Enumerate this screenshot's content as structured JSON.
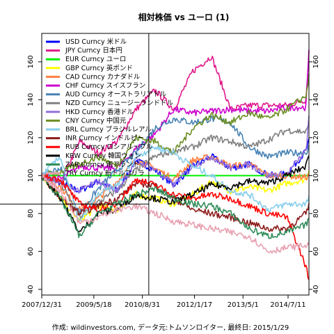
{
  "chart_data": {
    "type": "line",
    "title": "相対株価 vs ユーロ (1)",
    "footer": "作成: wildinvestors.com, データ元:トムソンロイター, 最終日: 2015/1/29",
    "xlabel": "",
    "ylabel": "",
    "x_tick_labels": [
      "2007/12/31",
      "2009/5/18",
      "2010/8/31",
      "2012/1/17",
      "2013/5/1",
      "2014/7/11"
    ],
    "x_tick_dates": [
      "2007-12-31",
      "2009-05-18",
      "2010-08-31",
      "2012-01-17",
      "2013-05-01",
      "2014-07-11"
    ],
    "x_range": [
      "2007-12-31",
      "2015-01-29"
    ],
    "y_ticks": [
      40,
      60,
      80,
      100,
      120,
      140,
      160
    ],
    "ylim": [
      37,
      175
    ],
    "reference_line": 100,
    "crosshair": {
      "date": "2010-11-01",
      "value": 85
    },
    "grid": false,
    "legend_position": "top-left",
    "series": [
      {
        "name": "USD Curncy 米ドル",
        "color": "#0000ff",
        "x": [
          "2007-12-31",
          "2008-06-30",
          "2008-12-31",
          "2009-06-30",
          "2009-12-31",
          "2010-06-30",
          "2010-12-31",
          "2011-06-30",
          "2011-12-31",
          "2012-06-30",
          "2012-12-31",
          "2013-06-30",
          "2013-12-31",
          "2014-06-30",
          "2014-12-31",
          "2015-01-29"
        ],
        "y": [
          100,
          96,
          92,
          97,
          92,
          108,
          103,
          95,
          105,
          110,
          104,
          106,
          100,
          101,
          113,
          118
        ]
      },
      {
        "name": "JPY Curncy 日本円",
        "color": "#e0188a",
        "x": [
          "2007-12-31",
          "2008-06-30",
          "2008-12-31",
          "2009-06-30",
          "2009-12-31",
          "2010-06-30",
          "2010-12-31",
          "2011-06-30",
          "2011-12-31",
          "2012-06-30",
          "2012-12-31",
          "2013-06-30",
          "2013-12-31",
          "2014-06-30",
          "2014-12-31",
          "2015-01-29"
        ],
        "y": [
          100,
          96,
          118,
          112,
          118,
          135,
          145,
          135,
          155,
          163,
          135,
          137,
          137,
          137,
          140,
          165
        ]
      },
      {
        "name": "EUR Curncy ユーロ",
        "color": "#00ee00",
        "x": [
          "2007-12-31",
          "2015-01-29"
        ],
        "y": [
          100,
          100
        ]
      },
      {
        "name": "GBP Curncy 英ポンド",
        "color": "#ffff00",
        "x": [
          "2007-12-31",
          "2008-06-30",
          "2008-12-31",
          "2009-06-30",
          "2009-12-31",
          "2010-06-30",
          "2010-12-31",
          "2011-06-30",
          "2011-12-31",
          "2012-06-30",
          "2012-12-31",
          "2013-06-30",
          "2013-12-31",
          "2014-06-30",
          "2014-12-31",
          "2015-01-29"
        ],
        "y": [
          100,
          88,
          76,
          84,
          82,
          90,
          88,
          85,
          90,
          97,
          92,
          94,
          92,
          96,
          98,
          103
        ]
      },
      {
        "name": "CAD Curncy カナダドル",
        "color": "#ff8040",
        "x": [
          "2007-12-31",
          "2008-06-30",
          "2008-12-31",
          "2009-06-30",
          "2009-12-31",
          "2010-06-30",
          "2010-12-31",
          "2011-06-30",
          "2011-12-31",
          "2012-06-30",
          "2012-12-31",
          "2013-06-30",
          "2013-12-31",
          "2014-06-30",
          "2014-12-31",
          "2015-01-29"
        ],
        "y": [
          100,
          94,
          82,
          88,
          97,
          108,
          104,
          98,
          108,
          110,
          105,
          106,
          100,
          100,
          99,
          100
        ]
      },
      {
        "name": "CHF Curncy スイスフラン",
        "color": "#cc00cc",
        "x": [
          "2007-12-31",
          "2008-06-30",
          "2008-12-31",
          "2009-06-30",
          "2009-12-31",
          "2010-06-30",
          "2010-12-31",
          "2011-06-30",
          "2011-12-31",
          "2012-06-30",
          "2012-12-31",
          "2013-06-30",
          "2013-12-31",
          "2014-06-30",
          "2014-12-31",
          "2015-01-29"
        ],
        "y": [
          100,
          98,
          105,
          104,
          104,
          114,
          122,
          135,
          133,
          134,
          135,
          134,
          134,
          136,
          136,
          165
        ]
      },
      {
        "name": "AUD Curncy オーストラリアドル",
        "color": "#4682b4",
        "x": [
          "2007-12-31",
          "2008-06-30",
          "2008-12-31",
          "2009-06-30",
          "2009-12-31",
          "2010-06-30",
          "2010-12-31",
          "2011-06-30",
          "2011-12-31",
          "2012-06-30",
          "2012-12-31",
          "2013-06-30",
          "2013-12-31",
          "2014-06-30",
          "2014-12-31",
          "2015-01-29"
        ],
        "y": [
          100,
          104,
          80,
          93,
          103,
          112,
          125,
          130,
          128,
          130,
          128,
          115,
          110,
          112,
          112,
          115
        ]
      },
      {
        "name": "NZD Curncy ニュージーランドドル",
        "color": "#808080",
        "x": [
          "2007-12-31",
          "2008-06-30",
          "2008-12-31",
          "2009-06-30",
          "2009-12-31",
          "2010-06-30",
          "2010-12-31",
          "2011-06-30",
          "2011-12-31",
          "2012-06-30",
          "2012-12-31",
          "2013-06-30",
          "2013-12-31",
          "2014-06-30",
          "2014-12-31",
          "2015-01-29"
        ],
        "y": [
          100,
          96,
          78,
          86,
          92,
          103,
          110,
          113,
          115,
          120,
          118,
          115,
          119,
          124,
          123,
          126
        ]
      },
      {
        "name": "HKD Curncy 香港ドル",
        "color": "#9370db",
        "x": [
          "2007-12-31",
          "2008-06-30",
          "2008-12-31",
          "2009-06-30",
          "2009-12-31",
          "2010-06-30",
          "2010-12-31",
          "2011-06-30",
          "2011-12-31",
          "2012-06-30",
          "2012-12-31",
          "2013-06-30",
          "2013-12-31",
          "2014-06-30",
          "2014-12-31",
          "2015-01-29"
        ],
        "y": [
          100,
          96,
          92,
          97,
          92,
          108,
          103,
          95,
          105,
          110,
          104,
          106,
          100,
          101,
          113,
          130
        ]
      },
      {
        "name": "CNY Curncy 中国元",
        "color": "#6b8e23",
        "x": [
          "2007-12-31",
          "2008-06-30",
          "2008-12-31",
          "2009-06-30",
          "2009-12-31",
          "2010-06-30",
          "2010-12-31",
          "2011-06-30",
          "2011-12-31",
          "2012-06-30",
          "2012-12-31",
          "2013-06-30",
          "2013-12-31",
          "2014-06-30",
          "2014-12-31",
          "2015-01-29"
        ],
        "y": [
          100,
          102,
          106,
          110,
          105,
          120,
          118,
          112,
          125,
          132,
          128,
          133,
          130,
          135,
          142,
          152
        ]
      },
      {
        "name": "BRL Curncy ブラジルレアル",
        "color": "#87ceeb",
        "x": [
          "2007-12-31",
          "2008-06-30",
          "2008-12-31",
          "2009-06-30",
          "2009-12-31",
          "2010-06-30",
          "2010-12-31",
          "2011-06-30",
          "2011-12-31",
          "2012-06-30",
          "2012-12-31",
          "2013-06-30",
          "2013-12-31",
          "2014-06-30",
          "2014-12-31",
          "2015-01-29"
        ],
        "y": [
          100,
          110,
          75,
          90,
          95,
          110,
          115,
          112,
          105,
          100,
          92,
          90,
          82,
          85,
          85,
          88
        ]
      },
      {
        "name": "INR Curncy インドルピー",
        "color": "#8b1a1a",
        "x": [
          "2007-12-31",
          "2008-06-30",
          "2008-12-31",
          "2009-06-30",
          "2009-12-31",
          "2010-06-30",
          "2010-12-31",
          "2011-06-30",
          "2011-12-31",
          "2012-06-30",
          "2012-12-31",
          "2013-06-30",
          "2013-12-31",
          "2014-06-30",
          "2014-12-31",
          "2015-01-29"
        ],
        "y": [
          100,
          88,
          80,
          84,
          88,
          96,
          95,
          88,
          82,
          80,
          78,
          75,
          72,
          72,
          80,
          84
        ]
      },
      {
        "name": "RUB Curncy ロシアルーブル",
        "color": "#ff0000",
        "x": [
          "2007-12-31",
          "2008-06-30",
          "2008-12-31",
          "2009-06-30",
          "2009-12-31",
          "2010-06-30",
          "2010-12-31",
          "2011-06-30",
          "2011-12-31",
          "2012-06-30",
          "2012-12-31",
          "2013-06-30",
          "2013-12-31",
          "2014-06-30",
          "2014-12-31",
          "2015-01-29"
        ],
        "y": [
          100,
          98,
          85,
          82,
          85,
          98,
          95,
          90,
          88,
          90,
          88,
          84,
          80,
          78,
          52,
          45
        ]
      },
      {
        "name": "KRW Curncy 韓国ウォン",
        "color": "#000000",
        "x": [
          "2007-12-31",
          "2008-06-30",
          "2008-12-31",
          "2009-06-30",
          "2009-12-31",
          "2010-06-30",
          "2010-12-31",
          "2011-06-30",
          "2011-12-31",
          "2012-06-30",
          "2012-12-31",
          "2013-06-30",
          "2013-12-31",
          "2014-06-30",
          "2014-12-31",
          "2015-01-29"
        ],
        "y": [
          100,
          88,
          70,
          80,
          82,
          90,
          88,
          86,
          90,
          95,
          94,
          97,
          96,
          100,
          105,
          110
        ]
      },
      {
        "name": "ZAR Curncy 南アランド",
        "color": "#2e8b57",
        "x": [
          "2007-12-31",
          "2008-06-30",
          "2008-12-31",
          "2009-06-30",
          "2009-12-31",
          "2010-06-30",
          "2010-12-31",
          "2011-06-30",
          "2011-12-31",
          "2012-06-30",
          "2012-12-31",
          "2013-06-30",
          "2013-12-31",
          "2014-06-30",
          "2014-12-31",
          "2015-01-29"
        ],
        "y": [
          100,
          88,
          68,
          80,
          85,
          90,
          93,
          88,
          85,
          84,
          80,
          72,
          68,
          70,
          74,
          78
        ]
      },
      {
        "name": "TRY Curncy 新トルコリラ",
        "color": "#e8a0b0",
        "x": [
          "2007-12-31",
          "2008-06-30",
          "2008-12-31",
          "2009-06-30",
          "2009-12-31",
          "2010-06-30",
          "2010-12-31",
          "2011-06-30",
          "2011-12-31",
          "2012-06-30",
          "2012-12-31",
          "2013-06-30",
          "2013-12-31",
          "2014-06-30",
          "2014-12-31",
          "2015-01-29"
        ],
        "y": [
          100,
          92,
          75,
          78,
          82,
          84,
          80,
          76,
          74,
          72,
          70,
          68,
          60,
          62,
          63,
          64
        ]
      }
    ]
  }
}
